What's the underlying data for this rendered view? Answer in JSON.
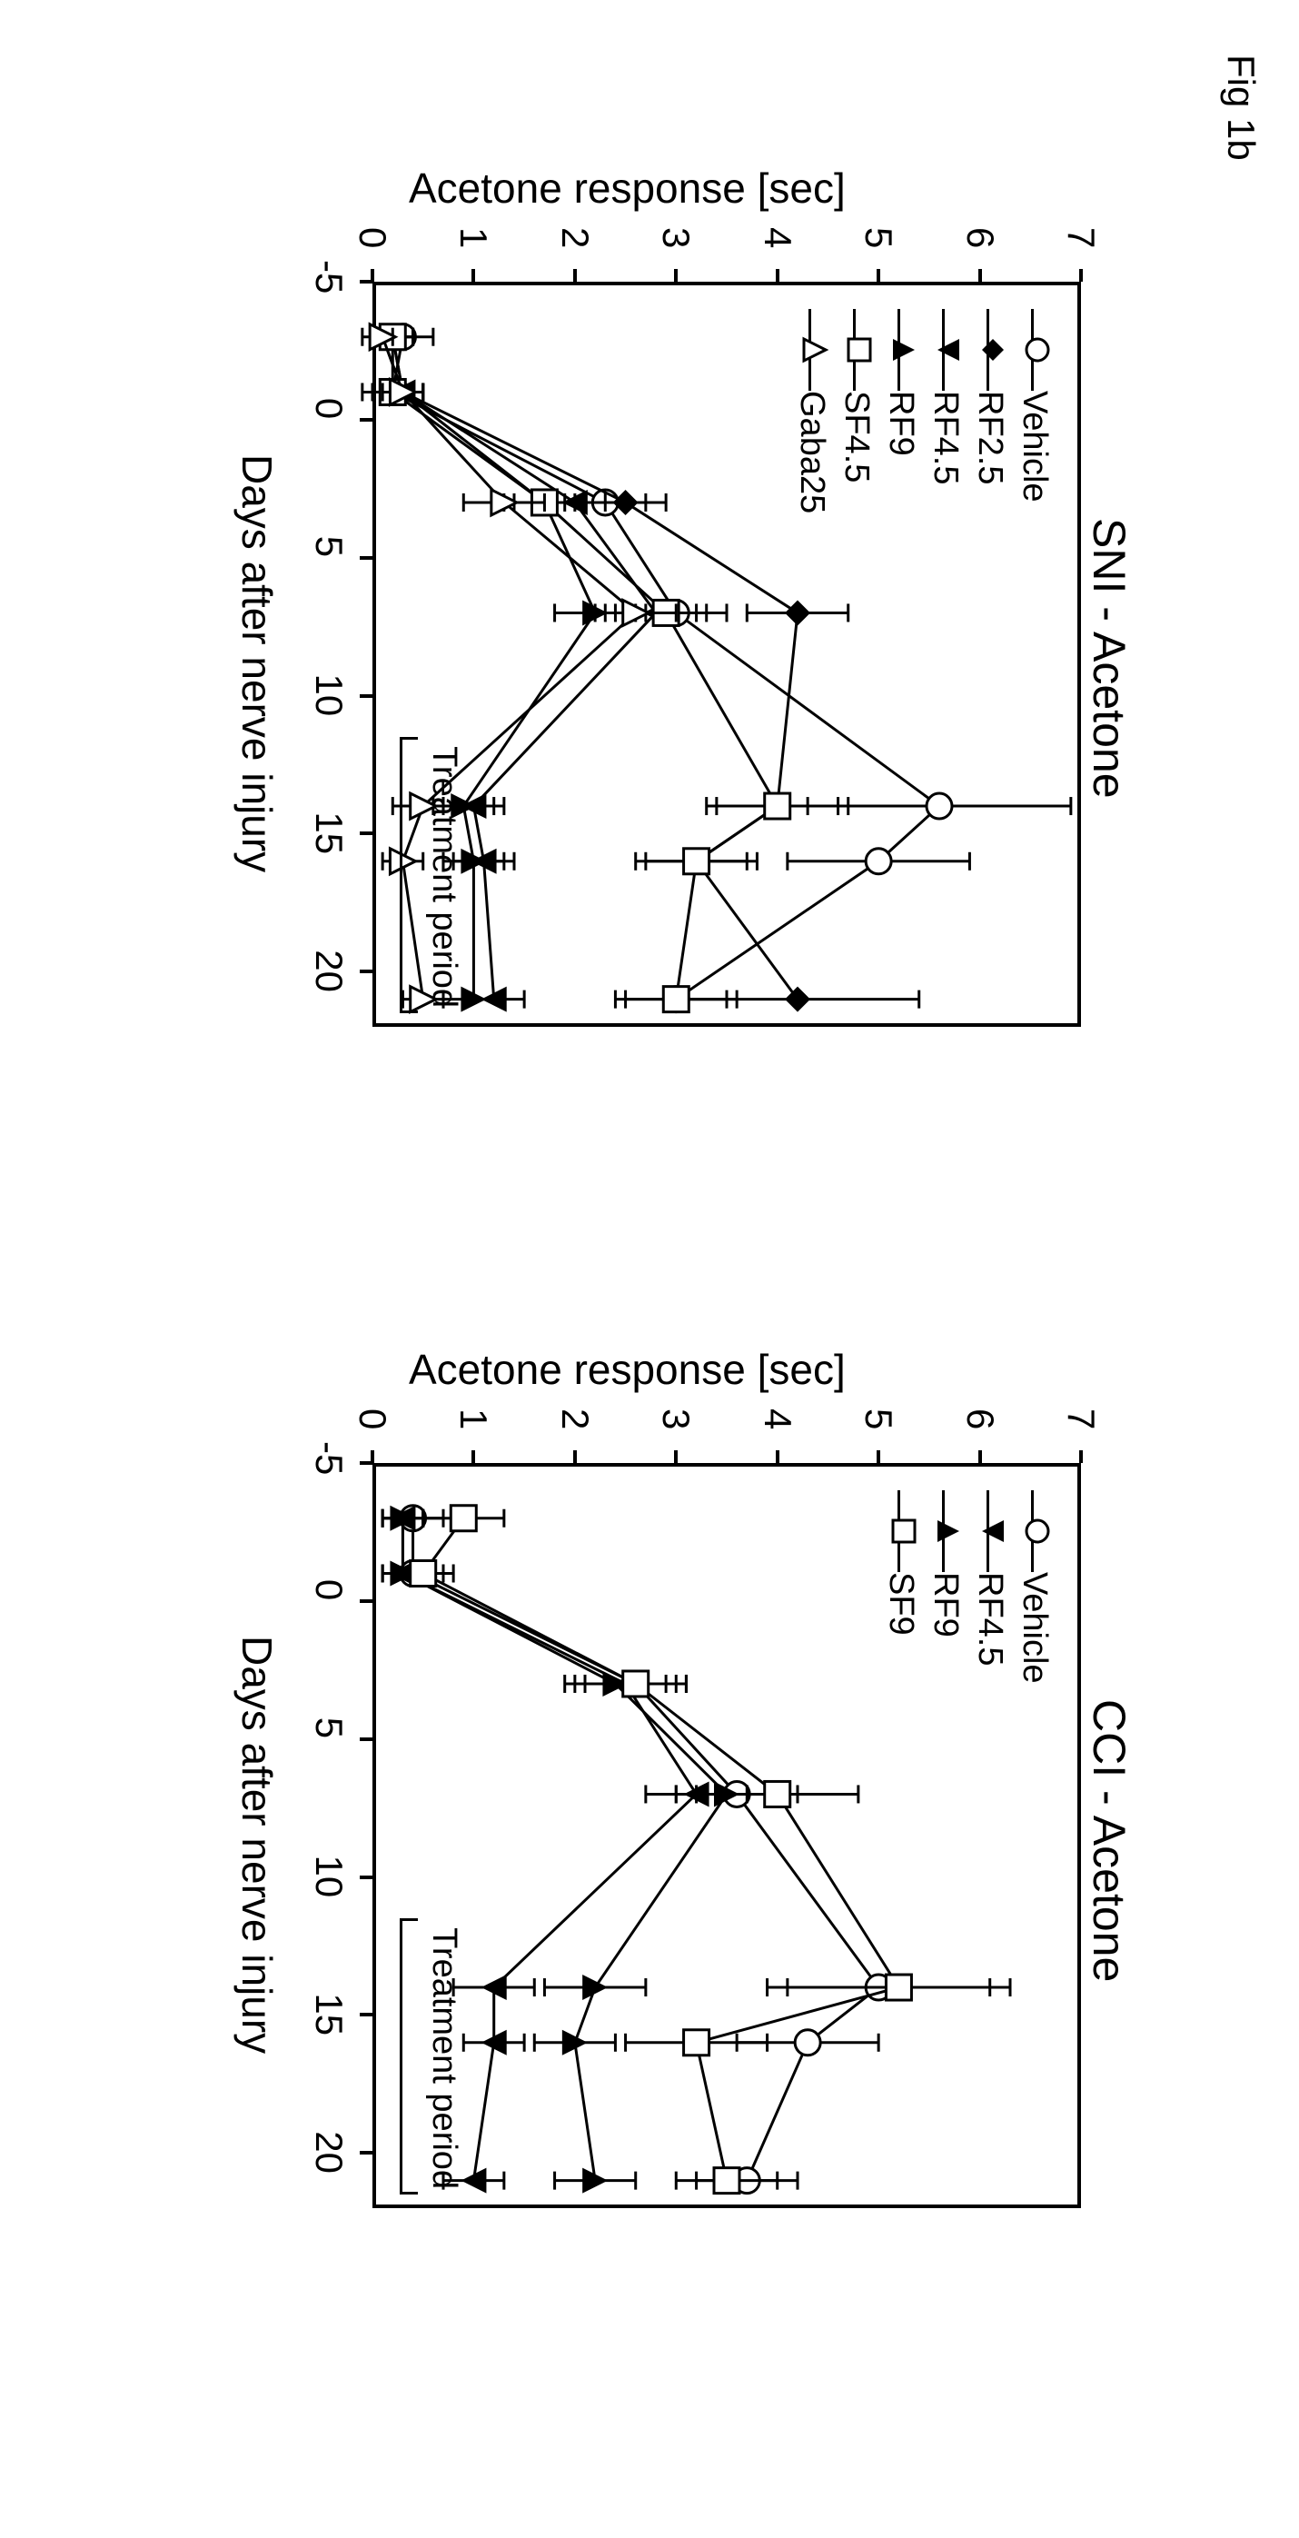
{
  "figure_label": "Fig 1b",
  "ylabel": "Acetone response [sec]",
  "xlabel": "Days after nerve injury",
  "treatment_label": "Treatment period",
  "line_color": "#000000",
  "background_color": "#ffffff",
  "border_color": "#000000",
  "line_width": 3,
  "label_fontsize": 46,
  "title_fontsize": 50,
  "tick_fontsize": 42,
  "legend_fontsize": 38,
  "marker_size": 14,
  "charts": [
    {
      "title": "SNI - Acetone",
      "type": "line",
      "xlim": [
        -5,
        22
      ],
      "ylim": [
        0,
        7
      ],
      "xticks": [
        -5,
        0,
        5,
        10,
        15,
        20
      ],
      "yticks": [
        0,
        1,
        2,
        3,
        4,
        5,
        6,
        7
      ],
      "treatment_x": [
        11.5,
        21.5
      ],
      "x_data": [
        -3,
        -1,
        3,
        7,
        14,
        16,
        21
      ],
      "series": [
        {
          "name": "Vehicle",
          "marker": "circle-open",
          "values": [
            0.3,
            0.2,
            2.3,
            3.0,
            5.6,
            5.0,
            3.0
          ],
          "errors": [
            0.3,
            0.3,
            0.4,
            0.3,
            1.3,
            0.9,
            0.5
          ]
        },
        {
          "name": "RF2.5",
          "marker": "diamond-filled",
          "values": [
            0.1,
            0.3,
            2.5,
            4.2,
            4.0,
            3.2,
            4.2
          ],
          "errors": [
            0.2,
            0.2,
            0.4,
            0.5,
            0.6,
            0.5,
            1.2
          ]
        },
        {
          "name": "RF4.5",
          "marker": "triangle-down-filled",
          "values": [
            0.2,
            0.3,
            2.0,
            2.8,
            1.0,
            1.1,
            1.2
          ],
          "errors": [
            0.2,
            0.2,
            0.3,
            0.4,
            0.3,
            0.3,
            0.3
          ]
        },
        {
          "name": "RF9",
          "marker": "triangle-up-filled",
          "values": [
            0.2,
            0.3,
            1.7,
            2.2,
            0.9,
            1.0,
            1.0
          ],
          "errors": [
            0.2,
            0.2,
            0.3,
            0.4,
            0.3,
            0.3,
            0.3
          ]
        },
        {
          "name": "SF4.5",
          "marker": "square-open",
          "values": [
            0.2,
            0.2,
            1.7,
            2.9,
            4.0,
            3.2,
            3.0
          ],
          "errors": [
            0.2,
            0.2,
            0.4,
            0.6,
            0.7,
            0.6,
            0.6
          ]
        },
        {
          "name": "Gaba25",
          "marker": "triangle-up-open",
          "values": [
            0.1,
            0.3,
            1.3,
            2.6,
            0.5,
            0.3,
            0.5
          ],
          "errors": [
            0.1,
            0.2,
            0.4,
            0.4,
            0.3,
            0.2,
            0.2
          ]
        }
      ]
    },
    {
      "title": "CCI - Acetone",
      "type": "line",
      "xlim": [
        -5,
        22
      ],
      "ylim": [
        0,
        7
      ],
      "xticks": [
        -5,
        0,
        5,
        10,
        15,
        20
      ],
      "yticks": [
        0,
        1,
        2,
        3,
        4,
        5,
        6,
        7
      ],
      "treatment_x": [
        11.5,
        21.5
      ],
      "x_data": [
        -3,
        -1,
        3,
        7,
        14,
        16,
        21
      ],
      "series": [
        {
          "name": "Vehicle",
          "marker": "circle-open",
          "values": [
            0.4,
            0.4,
            2.6,
            3.6,
            5.0,
            4.3,
            3.7
          ],
          "errors": [
            0.3,
            0.3,
            0.5,
            0.6,
            1.1,
            0.7,
            0.5
          ]
        },
        {
          "name": "RF4.5",
          "marker": "triangle-down-filled",
          "values": [
            0.3,
            0.3,
            2.5,
            3.2,
            1.2,
            1.2,
            1.0
          ],
          "errors": [
            0.2,
            0.2,
            0.5,
            0.5,
            0.4,
            0.3,
            0.3
          ]
        },
        {
          "name": "RF9",
          "marker": "triangle-up-filled",
          "values": [
            0.3,
            0.3,
            2.4,
            3.5,
            2.2,
            2.0,
            2.2
          ],
          "errors": [
            0.2,
            0.2,
            0.5,
            0.5,
            0.5,
            0.4,
            0.4
          ]
        },
        {
          "name": "SF9",
          "marker": "square-open",
          "values": [
            0.9,
            0.5,
            2.6,
            4.0,
            5.2,
            3.2,
            3.5
          ],
          "errors": [
            0.4,
            0.3,
            0.5,
            0.8,
            1.1,
            0.7,
            0.5
          ]
        }
      ]
    }
  ]
}
